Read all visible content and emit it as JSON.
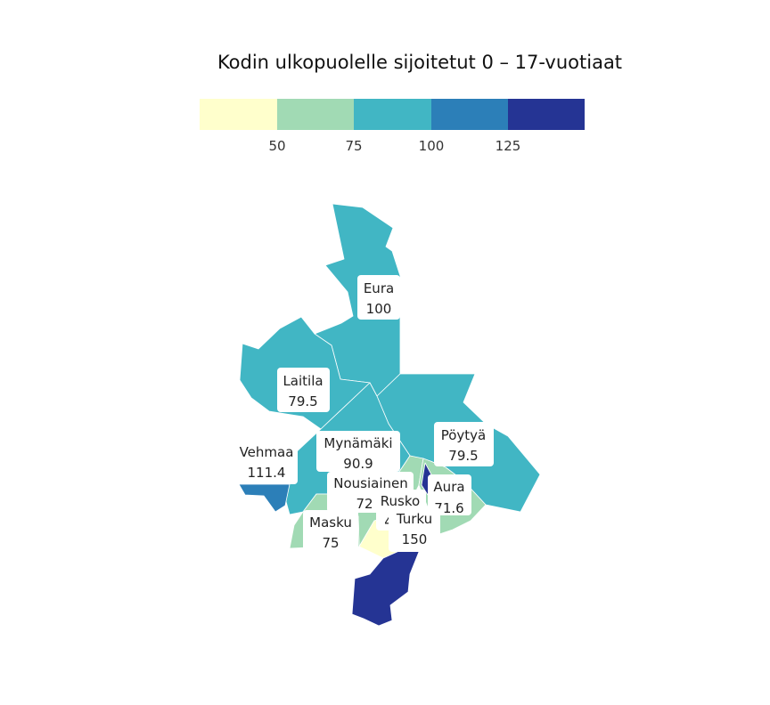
{
  "title": "Kodin ulkopuolelle sijoitetut 0 – 17-vuotiaat",
  "legend": {
    "ticks": [
      "50",
      "75",
      "100",
      "125"
    ],
    "bins": [
      {
        "from": null,
        "to": 50,
        "color": "#ffffcc"
      },
      {
        "from": 50,
        "to": 75,
        "color": "#a1dab4"
      },
      {
        "from": 75,
        "to": 100,
        "color": "#41b6c4"
      },
      {
        "from": 100,
        "to": 125,
        "color": "#2c7fb8"
      },
      {
        "from": 125,
        "to": null,
        "color": "#253494"
      }
    ]
  },
  "map_data": {
    "type": "choropleth",
    "regions": [
      {
        "name": "Eura",
        "value": "100",
        "color": "#41b6c4"
      },
      {
        "name": "Laitila",
        "value": "79.5",
        "color": "#41b6c4"
      },
      {
        "name": "Vehmaa",
        "value": "111.4",
        "color": "#2c7fb8"
      },
      {
        "name": "Mynämäki",
        "value": "90.9",
        "color": "#41b6c4"
      },
      {
        "name": "Pöytyä",
        "value": "79.5",
        "color": "#41b6c4"
      },
      {
        "name": "Nousiainen",
        "value": "72",
        "color": "#a1dab4"
      },
      {
        "name": "Aura",
        "value": "71.6",
        "color": "#a1dab4"
      },
      {
        "name": "Rusko",
        "value": "4",
        "color": "#ffffcc"
      },
      {
        "name": "Masku",
        "value": "75",
        "color": "#a1dab4"
      },
      {
        "name": "Turku",
        "value": "150",
        "color": "#253494"
      }
    ]
  }
}
